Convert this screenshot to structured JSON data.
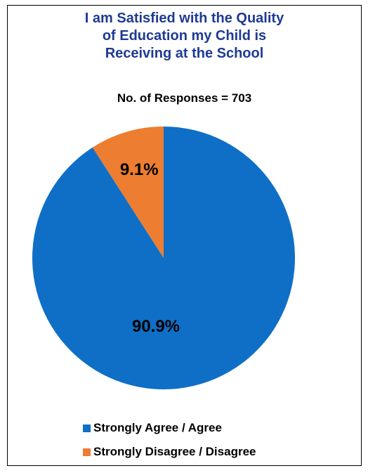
{
  "chart_data": {
    "type": "pie",
    "title": "I am Satisfied with the Quality\nof Education my Child is\nReceiving at the School",
    "subtitle": "No. of Responses = 703",
    "categories": [
      "Strongly Agree / Agree",
      "Strongly Disagree / Disagree"
    ],
    "values": [
      90.9,
      9.1
    ],
    "data_labels": [
      "90.9%",
      "9.1%"
    ],
    "colors": [
      "#0f6fc6",
      "#ed7d31"
    ],
    "legend_position": "bottom"
  }
}
